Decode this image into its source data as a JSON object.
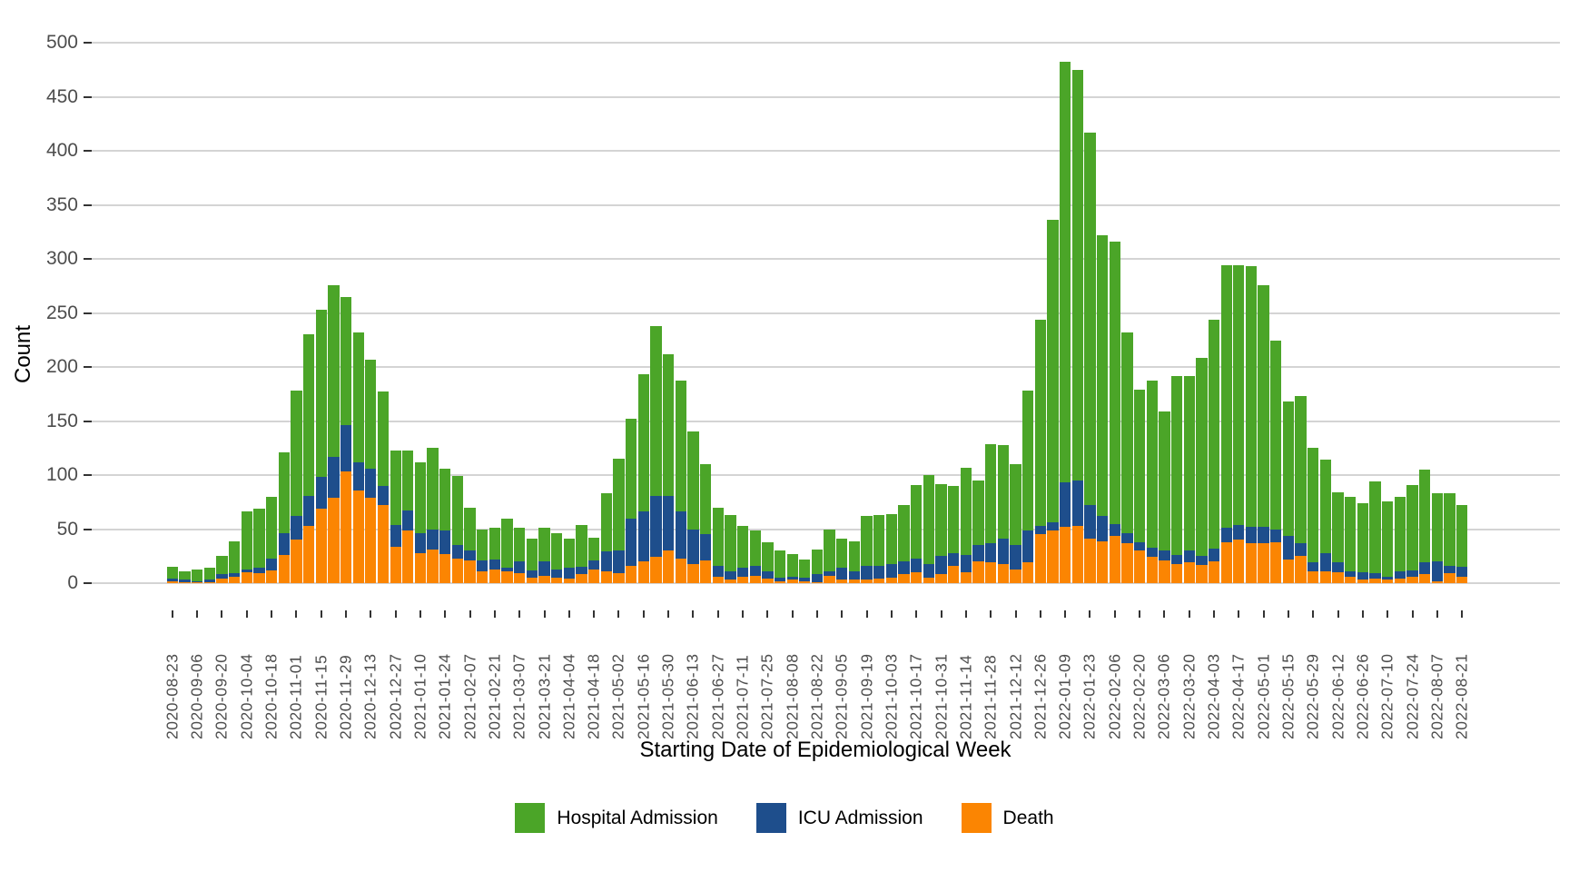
{
  "chart_data": {
    "type": "bar",
    "stacked": true,
    "title": "",
    "xlabel": "Starting Date of Epidemiological Week",
    "ylabel": "Count",
    "ylim": [
      0,
      500
    ],
    "ytick_step": 50,
    "grid": true,
    "x_tick_every": 2,
    "x": [
      "2020-08-23",
      "2020-08-30",
      "2020-09-06",
      "2020-09-13",
      "2020-09-20",
      "2020-09-27",
      "2020-10-04",
      "2020-10-11",
      "2020-10-18",
      "2020-10-25",
      "2020-11-01",
      "2020-11-08",
      "2020-11-15",
      "2020-11-22",
      "2020-11-29",
      "2020-12-06",
      "2020-12-13",
      "2020-12-20",
      "2020-12-27",
      "2021-01-03",
      "2021-01-10",
      "2021-01-17",
      "2021-01-24",
      "2021-01-31",
      "2021-02-07",
      "2021-02-14",
      "2021-02-21",
      "2021-02-28",
      "2021-03-07",
      "2021-03-14",
      "2021-03-21",
      "2021-03-28",
      "2021-04-04",
      "2021-04-11",
      "2021-04-18",
      "2021-04-25",
      "2021-05-02",
      "2021-05-09",
      "2021-05-16",
      "2021-05-23",
      "2021-05-30",
      "2021-06-06",
      "2021-06-13",
      "2021-06-20",
      "2021-06-27",
      "2021-07-04",
      "2021-07-11",
      "2021-07-18",
      "2021-07-25",
      "2021-08-01",
      "2021-08-08",
      "2021-08-15",
      "2021-08-22",
      "2021-08-29",
      "2021-09-05",
      "2021-09-12",
      "2021-09-19",
      "2021-09-26",
      "2021-10-03",
      "2021-10-10",
      "2021-10-17",
      "2021-10-24",
      "2021-10-31",
      "2021-11-07",
      "2021-11-14",
      "2021-11-21",
      "2021-11-28",
      "2021-12-05",
      "2021-12-12",
      "2021-12-19",
      "2021-12-26",
      "2022-01-02",
      "2022-01-09",
      "2022-01-16",
      "2022-01-23",
      "2022-01-30",
      "2022-02-06",
      "2022-02-13",
      "2022-02-20",
      "2022-02-27",
      "2022-03-06",
      "2022-03-13",
      "2022-03-20",
      "2022-03-27",
      "2022-04-03",
      "2022-04-10",
      "2022-04-17",
      "2022-04-24",
      "2022-05-01",
      "2022-05-08",
      "2022-05-15",
      "2022-05-22",
      "2022-05-29",
      "2022-06-05",
      "2022-06-12",
      "2022-06-19",
      "2022-06-26",
      "2022-07-03",
      "2022-07-10",
      "2022-07-17",
      "2022-07-24",
      "2022-07-31",
      "2022-08-07",
      "2022-08-14",
      "2022-08-21"
    ],
    "series": [
      {
        "name": "Death",
        "color": "#FB8502",
        "values": [
          2,
          1,
          1,
          1,
          4,
          6,
          10,
          9,
          12,
          26,
          40,
          53,
          69,
          79,
          103,
          86,
          79,
          72,
          34,
          49,
          28,
          31,
          27,
          23,
          21,
          11,
          13,
          11,
          9,
          5,
          7,
          5,
          4,
          8,
          13,
          11,
          9,
          16,
          20,
          24,
          30,
          23,
          18,
          21,
          6,
          3,
          6,
          7,
          4,
          2,
          3,
          2,
          1,
          7,
          3,
          3,
          3,
          4,
          5,
          8,
          10,
          5,
          8,
          16,
          10,
          20,
          19,
          18,
          13,
          19,
          45,
          49,
          52,
          53,
          41,
          39,
          44,
          37,
          30,
          24,
          21,
          18,
          19,
          17,
          20,
          38,
          40,
          37,
          37,
          38,
          22,
          25,
          11,
          11,
          10,
          6,
          3,
          4,
          3,
          4,
          6,
          8,
          2,
          9,
          6
        ]
      },
      {
        "name": "ICU Admission",
        "color": "#1E4E8C",
        "values": [
          2,
          2,
          1,
          2,
          4,
          3,
          3,
          5,
          11,
          20,
          22,
          28,
          29,
          38,
          43,
          26,
          27,
          18,
          20,
          18,
          18,
          19,
          22,
          12,
          9,
          10,
          9,
          3,
          11,
          7,
          13,
          8,
          10,
          7,
          8,
          18,
          21,
          44,
          46,
          57,
          51,
          43,
          32,
          24,
          10,
          8,
          8,
          9,
          7,
          3,
          3,
          3,
          7,
          4,
          11,
          8,
          13,
          12,
          13,
          12,
          13,
          13,
          17,
          12,
          16,
          15,
          18,
          23,
          22,
          30,
          8,
          7,
          41,
          42,
          31,
          23,
          11,
          9,
          8,
          9,
          9,
          8,
          11,
          8,
          12,
          13,
          14,
          15,
          15,
          12,
          22,
          12,
          8,
          17,
          9,
          5,
          7,
          5,
          3,
          7,
          6,
          11,
          18,
          7,
          9
        ]
      },
      {
        "name": "Hospital Admission",
        "color": "#4BA528",
        "values": [
          11,
          8,
          11,
          11,
          17,
          30,
          53,
          55,
          57,
          75,
          116,
          149,
          155,
          159,
          119,
          120,
          101,
          87,
          69,
          56,
          66,
          75,
          57,
          64,
          40,
          29,
          29,
          46,
          31,
          29,
          31,
          33,
          27,
          39,
          21,
          54,
          85,
          92,
          127,
          157,
          131,
          121,
          90,
          65,
          54,
          52,
          39,
          33,
          27,
          25,
          21,
          17,
          23,
          39,
          27,
          28,
          46,
          47,
          46,
          52,
          68,
          82,
          67,
          62,
          81,
          60,
          92,
          87,
          75,
          129,
          191,
          280,
          389,
          380,
          345,
          260,
          261,
          186,
          141,
          154,
          129,
          166,
          162,
          183,
          212,
          243,
          240,
          241,
          224,
          174,
          124,
          136,
          106,
          86,
          65,
          69,
          64,
          85,
          70,
          69,
          79,
          86,
          63,
          67,
          57
        ]
      }
    ],
    "legend": {
      "position": "bottom",
      "order": [
        2,
        1,
        0
      ]
    }
  }
}
